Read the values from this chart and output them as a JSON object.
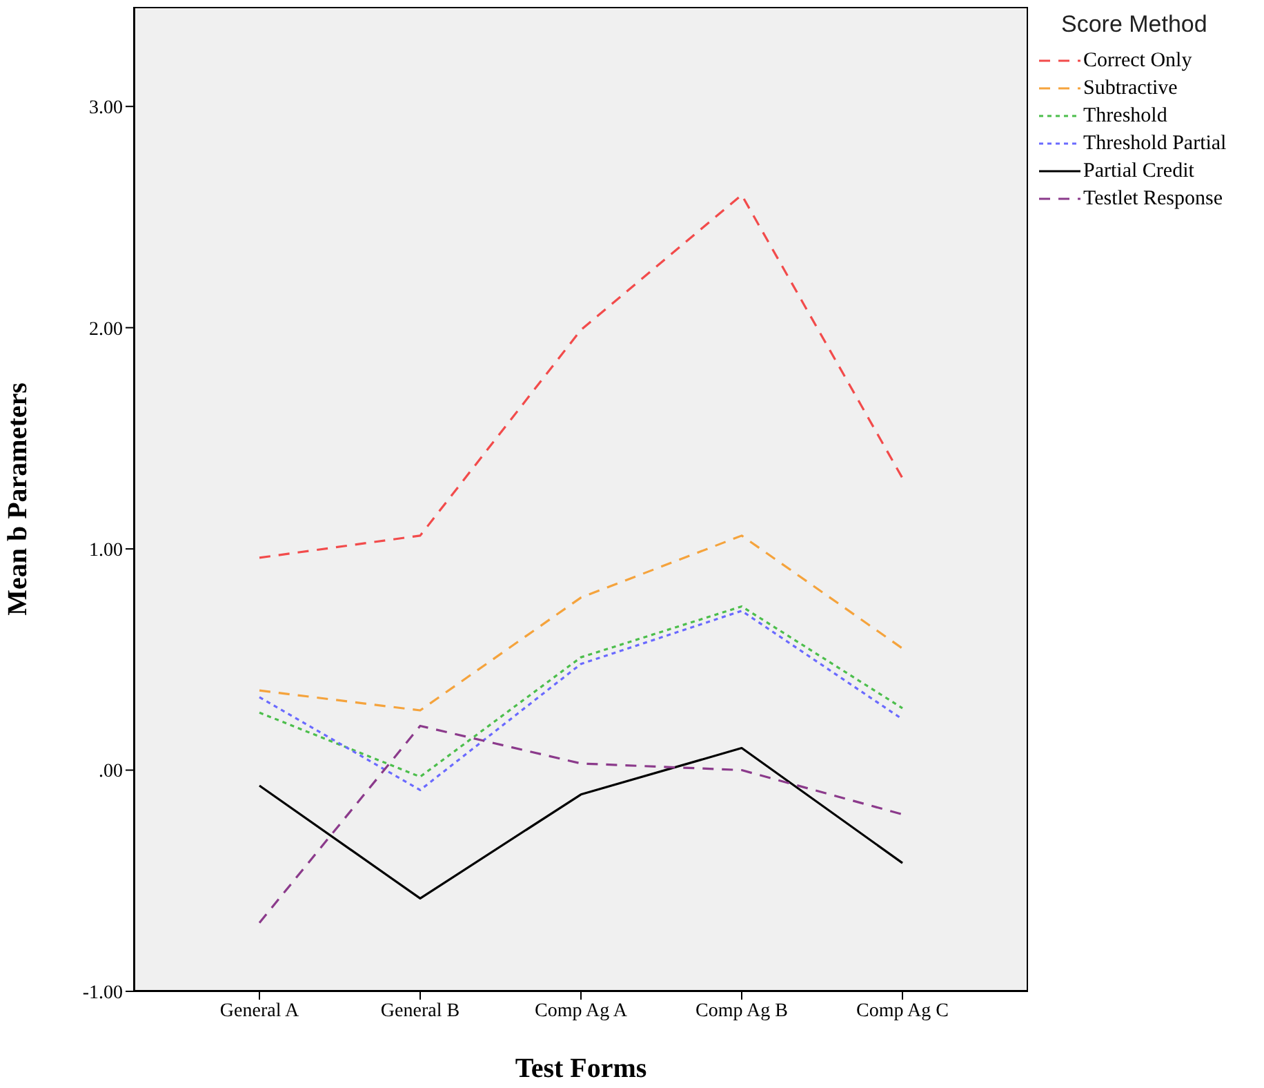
{
  "chart_data": {
    "type": "line",
    "xlabel": "Test Forms",
    "ylabel": "Mean b Parameters",
    "legend_title": "Score Method",
    "legend": "top right",
    "marker": "none",
    "categories": [
      "General A",
      "General B",
      "Comp Ag A",
      "Comp Ag B",
      "Comp Ag C"
    ],
    "ylim": [
      -1,
      3.45
    ],
    "yticks": [
      {
        "value": -1,
        "label": "-1.00"
      },
      {
        "value": 0,
        "label": ".00"
      },
      {
        "value": 1,
        "label": "1.00"
      },
      {
        "value": 2,
        "label": "2.00"
      },
      {
        "value": 3,
        "label": "3.00"
      }
    ],
    "series": [
      {
        "name": "Correct Only",
        "color": "#f24b4b",
        "line_style": "dashed",
        "values": [
          0.96,
          1.06,
          1.99,
          2.6,
          1.32
        ]
      },
      {
        "name": "Subtractive",
        "color": "#f5a33c",
        "line_style": "dashed",
        "values": [
          0.36,
          0.27,
          0.78,
          1.06,
          0.55
        ]
      },
      {
        "name": "Threshold",
        "color": "#4cbe4c",
        "line_style": "dotted",
        "values": [
          0.26,
          -0.03,
          0.51,
          0.74,
          0.28
        ]
      },
      {
        "name": "Threshold Partial",
        "color": "#6a6aff",
        "line_style": "dotted",
        "values": [
          0.33,
          -0.09,
          0.48,
          0.72,
          0.23
        ]
      },
      {
        "name": "Partial Credit",
        "color": "#000000",
        "line_style": "solid",
        "values": [
          -0.07,
          -0.58,
          -0.11,
          0.1,
          -0.42
        ]
      },
      {
        "name": "Testlet Response",
        "color": "#8b3a8b",
        "line_style": "dashed",
        "values": [
          -0.69,
          0.2,
          0.03,
          0,
          -0.2
        ]
      }
    ]
  }
}
